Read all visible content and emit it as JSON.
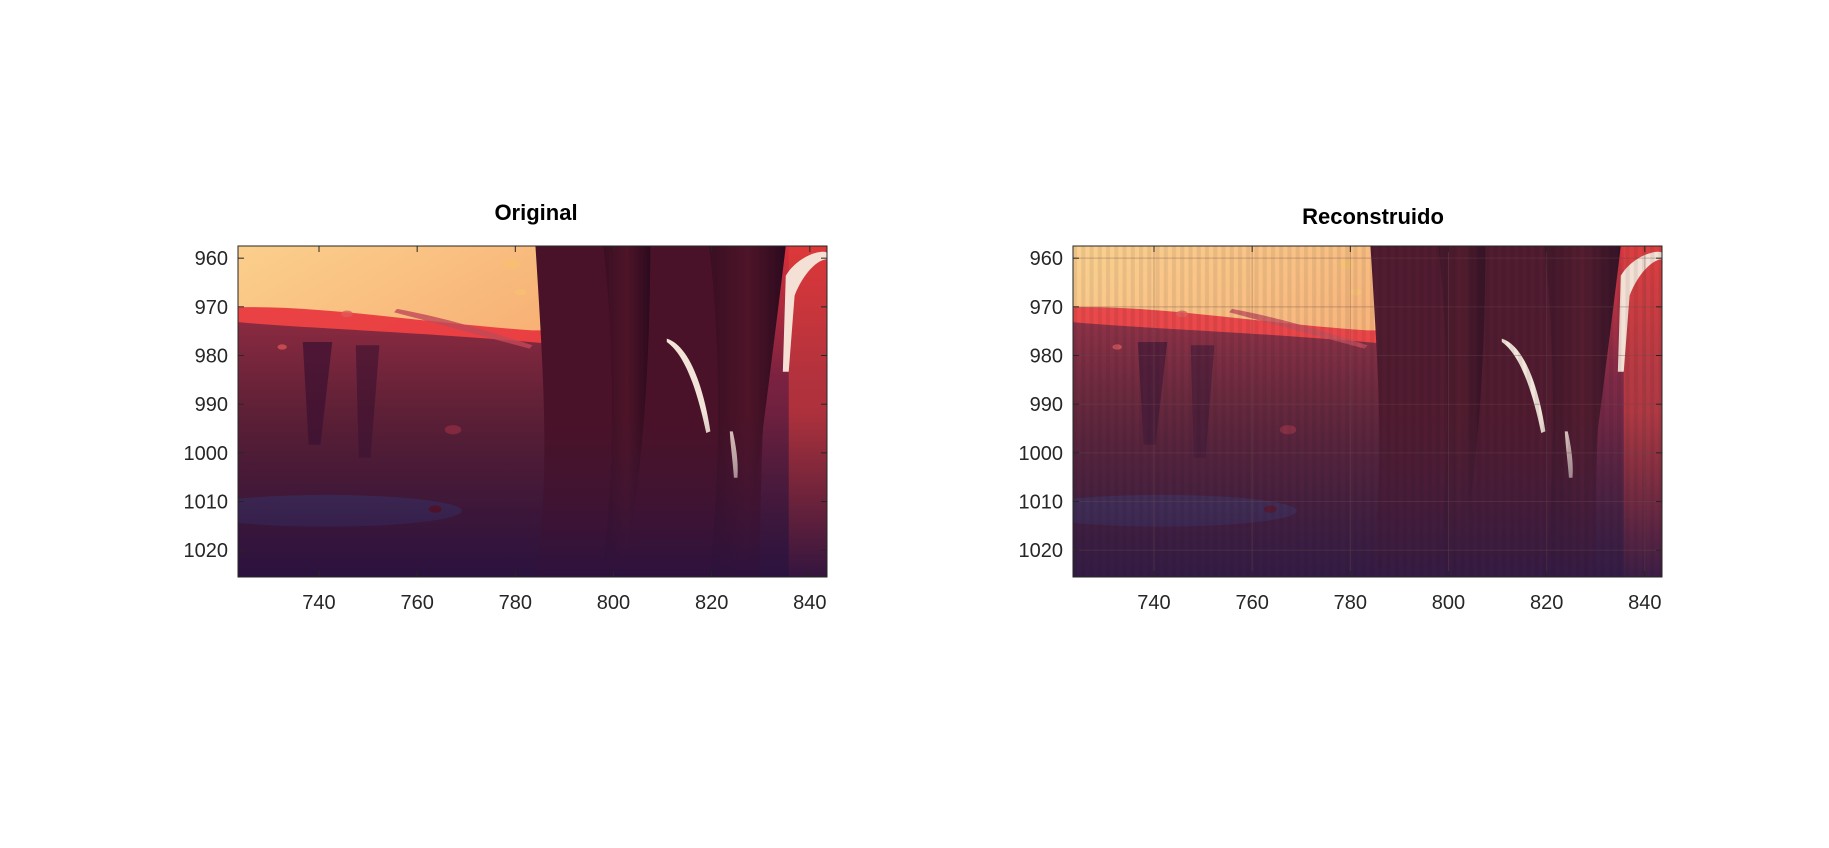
{
  "chart_data": [
    {
      "type": "heatmap",
      "title": "Original",
      "xlabel": "",
      "ylabel": "",
      "xlim": [
        723.5,
        843.5
      ],
      "ylim": [
        957.5,
        1025.5
      ],
      "y_direction": "reverse",
      "xticks": [
        740,
        760,
        780,
        800,
        820,
        840
      ],
      "yticks": [
        960,
        970,
        980,
        990,
        1000,
        1010,
        1020
      ],
      "grid": false,
      "content": "photo crop of a red/orange sunset street scene: bright orange sky top-left, dark car body, two dark vertical shapes (legs) in the center-right, red glow top-right"
    },
    {
      "type": "heatmap",
      "title": "Reconstruido",
      "xlabel": "",
      "ylabel": "",
      "xlim": [
        723.5,
        843.5
      ],
      "ylim": [
        957.5,
        1025.5
      ],
      "y_direction": "reverse",
      "xticks": [
        740,
        760,
        780,
        800,
        820,
        840
      ],
      "yticks": [
        960,
        970,
        980,
        990,
        1000,
        1010,
        1020
      ],
      "grid": true,
      "content": "reconstruction of the same crop with visible vertical column artifacts"
    }
  ],
  "colors": {
    "sky_light": "#f8c080",
    "sky_mid": "#f49060",
    "red_glow": "#e8303a",
    "car_body": "#5a1f32",
    "dark": "#2a0c1e",
    "ground": "#3a1838",
    "blue_patch": "#3a3a6a"
  }
}
